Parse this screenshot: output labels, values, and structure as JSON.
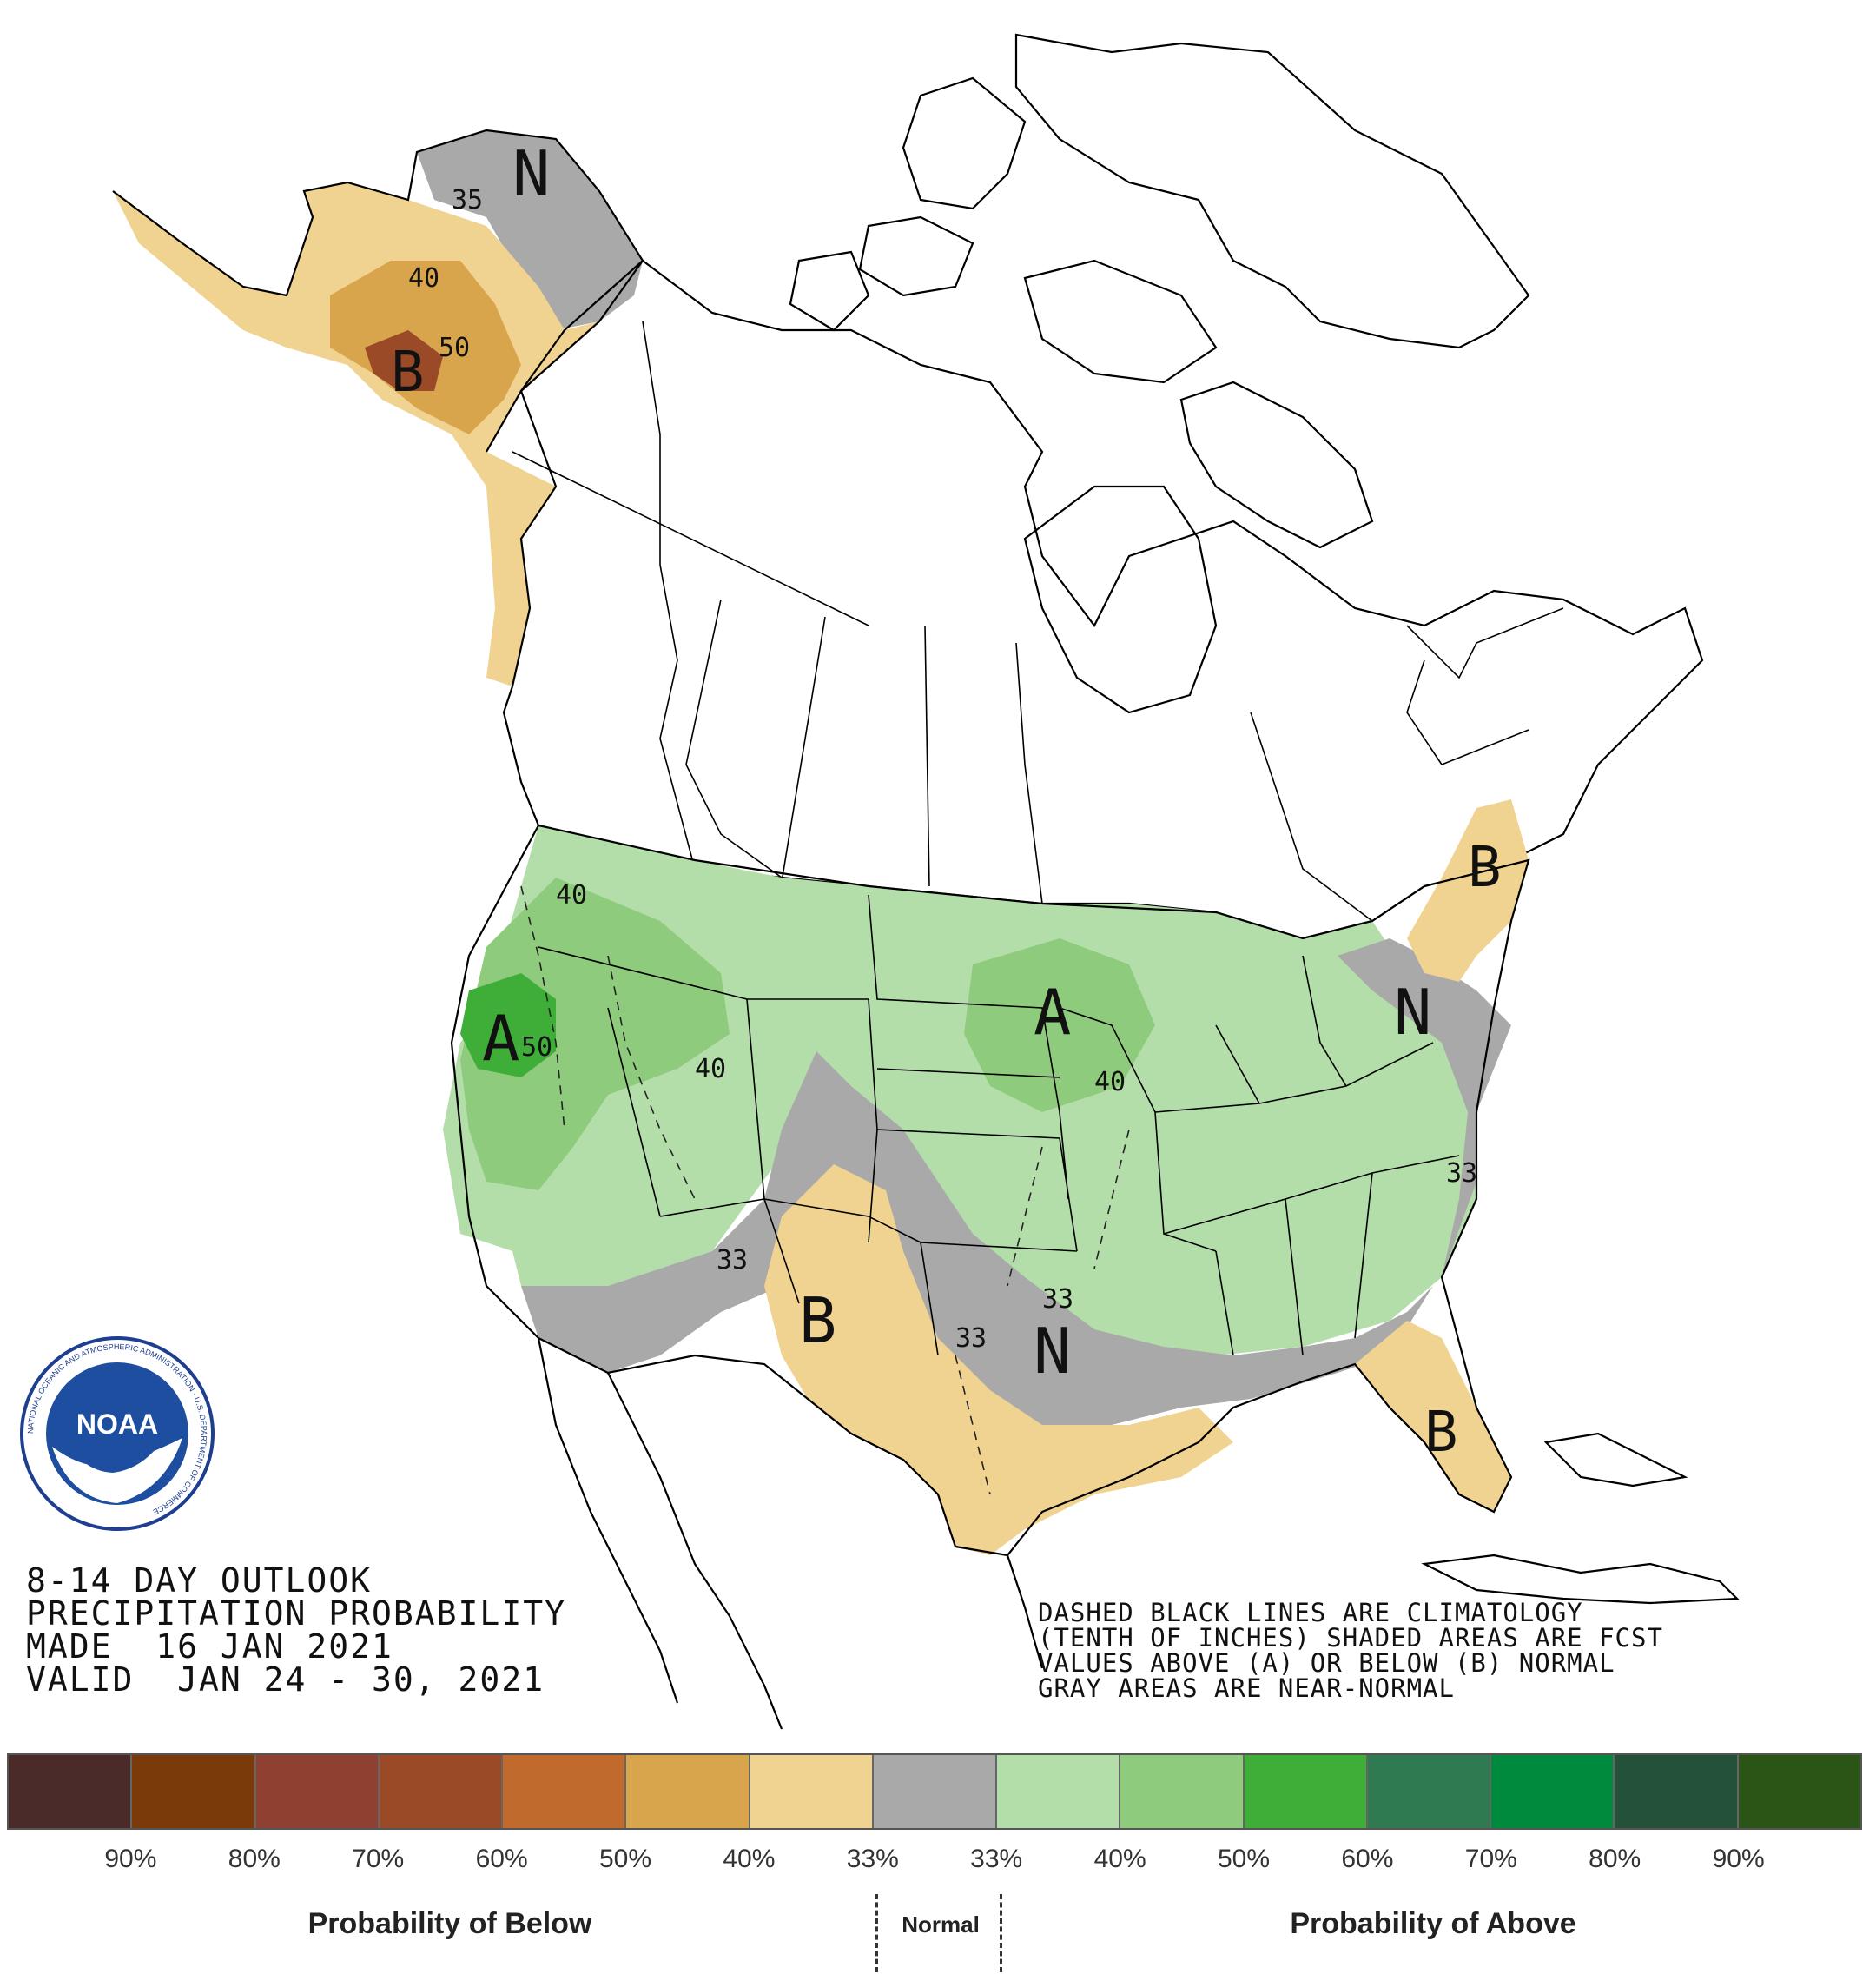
{
  "title": {
    "line1": "8-14 DAY OUTLOOK",
    "line2": "PRECIPITATION PROBABILITY",
    "line3": "MADE  16 JAN 2021",
    "line4": "VALID  JAN 24 - 30, 2021"
  },
  "notes": {
    "line1": "DASHED BLACK LINES ARE CLIMATOLOGY",
    "line2": "(TENTH OF INCHES) SHADED AREAS ARE FCST",
    "line3": "VALUES ABOVE (A) OR BELOW (B) NORMAL",
    "line4": "GRAY AREAS ARE NEAR-NORMAL"
  },
  "map_labels": {
    "alaska_n": "N",
    "alaska_b": "B",
    "alaska_35": "35",
    "alaska_40": "40",
    "alaska_50": "50",
    "west_a": "A",
    "west_40": "40",
    "west_50": "50",
    "rockies_40": "40",
    "midwest_a": "A",
    "midwest_40": "40",
    "northeast_b": "B",
    "northeast_n": "N",
    "southwest_33": "33",
    "southwest_b": "B",
    "south_33": "33",
    "south_33b": "33",
    "south_n": "N",
    "florida_b": "B",
    "east_33": "33"
  },
  "legend": {
    "colors": [
      "#4a2b2a",
      "#7a3a0a",
      "#8e4130",
      "#9b4a27",
      "#c06a2e",
      "#d9a54c",
      "#f0d291",
      "#a9a9a9",
      "#b3deaa",
      "#8fcb7c",
      "#3fae38",
      "#2f7a50",
      "#008a3e",
      "#23513a",
      "#2b5517"
    ],
    "labels": [
      "90%",
      "80%",
      "70%",
      "60%",
      "50%",
      "40%",
      "33%",
      "33%",
      "40%",
      "50%",
      "60%",
      "70%",
      "80%",
      "90%"
    ],
    "below_label": "Probability of Below",
    "normal_label": "Normal",
    "above_label": "Probability of Above"
  },
  "logo": {
    "text": "NOAA",
    "ring_text": "NATIONAL OCEANIC AND ATMOSPHERIC ADMINISTRATION · U.S. DEPARTMENT OF COMMERCE"
  },
  "colors": {
    "below_33": "#f0d291",
    "below_40": "#d9a54c",
    "below_50": "#c06a2e",
    "near_normal": "#a9a9a9",
    "above_33": "#b3deaa",
    "above_40": "#8fcb7c",
    "above_50": "#3fae38"
  }
}
